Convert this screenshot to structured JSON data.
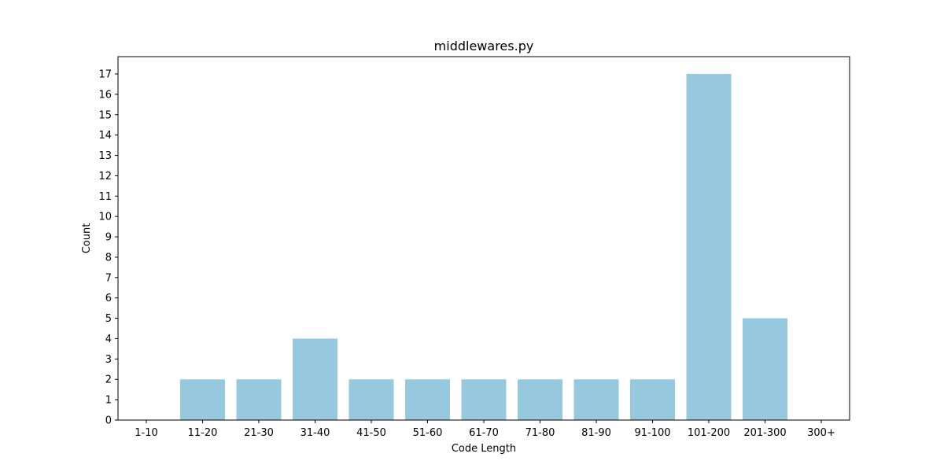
{
  "chart_data": {
    "type": "bar",
    "title": "middlewares.py",
    "xlabel": "Code Length",
    "ylabel": "Count",
    "categories": [
      "1-10",
      "11-20",
      "21-30",
      "31-40",
      "41-50",
      "51-60",
      "61-70",
      "71-80",
      "81-90",
      "91-100",
      "101-200",
      "201-300",
      "300+"
    ],
    "values": [
      0,
      2,
      2,
      4,
      2,
      2,
      2,
      2,
      2,
      2,
      17,
      5,
      0
    ],
    "ylim": [
      0,
      17.85
    ],
    "yticks": [
      0,
      1,
      2,
      3,
      4,
      5,
      6,
      7,
      8,
      9,
      10,
      11,
      12,
      13,
      14,
      15,
      16,
      17
    ],
    "bar_color": "#96c9de",
    "grid": false,
    "legend": "none"
  }
}
